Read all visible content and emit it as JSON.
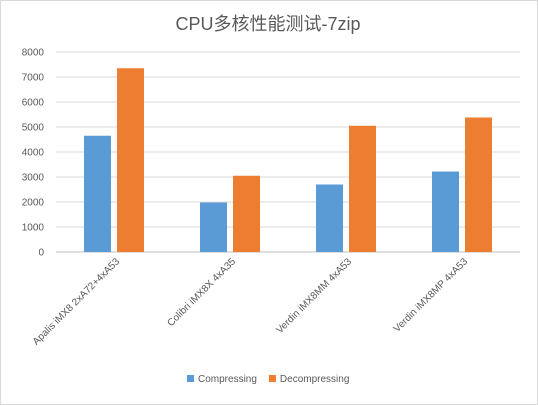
{
  "chart_data": {
    "type": "bar",
    "title": "CPU多核性能测试-7zip",
    "xlabel": "",
    "ylabel": "",
    "ylim": [
      0,
      8000
    ],
    "yticks": [
      0,
      1000,
      2000,
      3000,
      4000,
      5000,
      6000,
      7000,
      8000
    ],
    "grid": true,
    "legend_position": "bottom",
    "categories": [
      "Apalis iMX8 2xA72+4xA53",
      "Colibri iMX8X 4xA35",
      "Verdin iMX8MM 4xA53",
      "Verdin iMX8MP 4xA53"
    ],
    "series": [
      {
        "name": "Compressing",
        "color": "#5b9bd5",
        "values": [
          4650,
          1980,
          2700,
          3220
        ]
      },
      {
        "name": "Decompressing",
        "color": "#ed7d31",
        "values": [
          7350,
          3050,
          5050,
          5380
        ]
      }
    ]
  }
}
